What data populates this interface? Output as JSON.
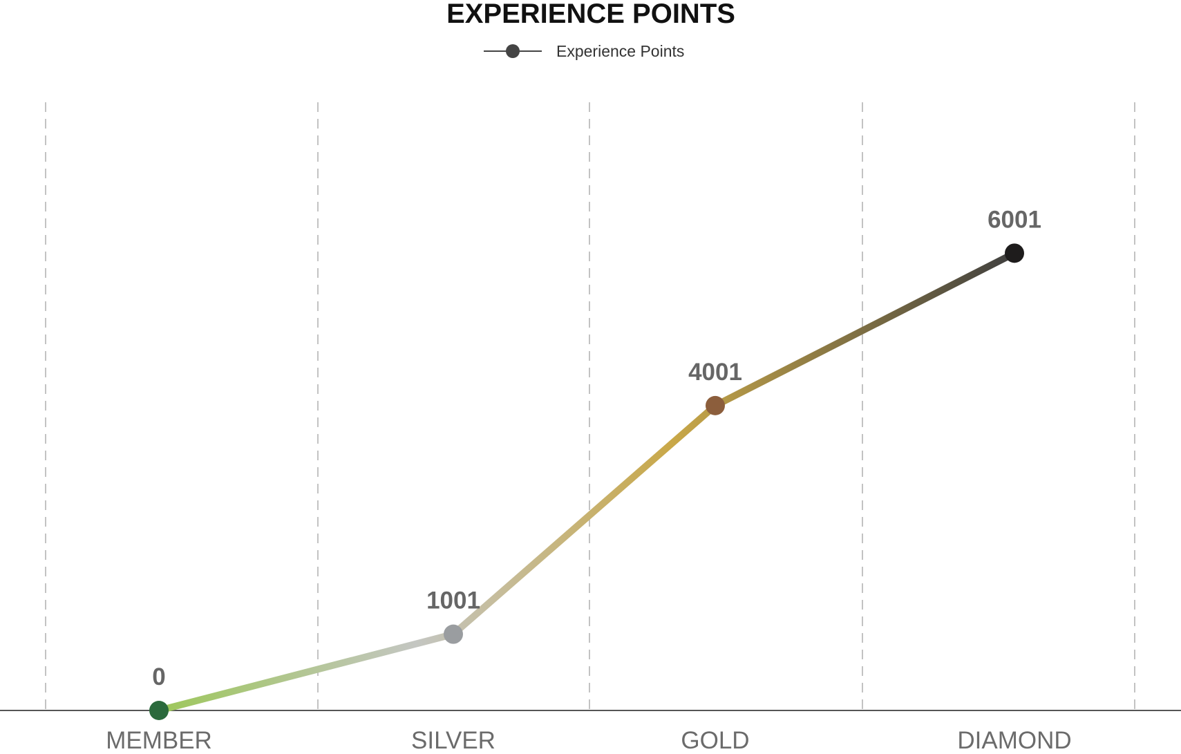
{
  "chart_data": {
    "type": "line",
    "title": "EXPERIENCE POINTS",
    "xlabel": "",
    "ylabel": "",
    "categories": [
      "MEMBER",
      "SILVER",
      "GOLD",
      "DIAMOND"
    ],
    "series": [
      {
        "name": "Experience Points",
        "values": [
          0,
          1001,
          4001,
          6001
        ]
      }
    ],
    "ylim": [
      0,
      8000
    ],
    "grid": "vertical dashed",
    "legend_position": "top-center",
    "point_colors": [
      "#2b6a3c",
      "#9a9da0",
      "#8c5e3c",
      "#1e1c1c"
    ],
    "line_gradient": [
      "#9dc75a",
      "#c4c6c2",
      "#c9a848",
      "#3f3f3f"
    ],
    "legend_marker_color": "#444444",
    "axis_color": "#555555"
  }
}
